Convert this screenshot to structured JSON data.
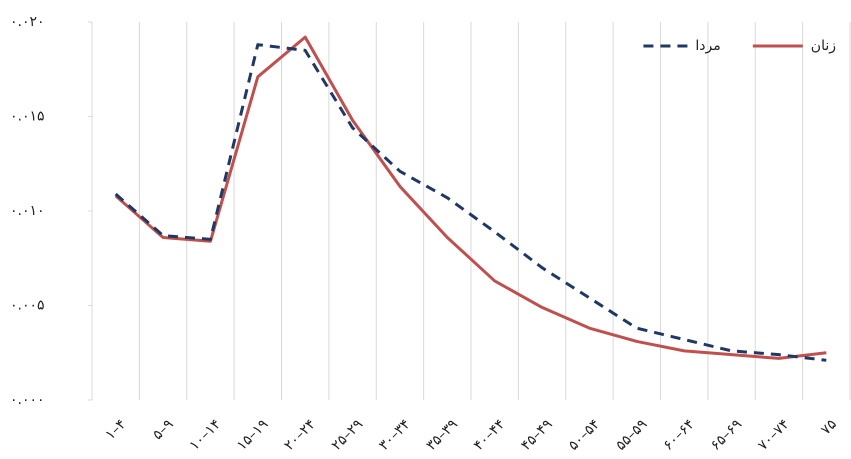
{
  "chart_data": {
    "type": "line",
    "categories": [
      "۱–۴",
      "۵–۹",
      "۱۰–۱۴",
      "۱۵–۱۹",
      "۲۰–۲۴",
      "۲۵–۲۹",
      "۳۰–۳۴",
      "۳۵–۳۹",
      "۴۰–۴۴",
      "۴۵–۴۹",
      "۵۰–۵۴",
      "۵۵–۵۹",
      "۶۰–۶۴",
      "۶۵–۶۹",
      "۷۰–۷۴",
      "۷۵"
    ],
    "series": [
      {
        "name": "زنان",
        "color": "#c0504d",
        "line_style": "solid",
        "values": [
          0.0108,
          0.0086,
          0.0084,
          0.0171,
          0.0192,
          0.0148,
          0.0113,
          0.0086,
          0.0063,
          0.0049,
          0.0038,
          0.0031,
          0.0026,
          0.0024,
          0.0022,
          0.0025
        ]
      },
      {
        "name": "مردا",
        "color": "#1f3864",
        "line_style": "dashed",
        "values": [
          0.0109,
          0.0087,
          0.0085,
          0.0188,
          0.0185,
          0.0144,
          0.0121,
          0.0107,
          0.0089,
          0.007,
          0.0054,
          0.0038,
          0.0032,
          0.0026,
          0.0024,
          0.0021
        ]
      }
    ],
    "ylim": [
      0,
      0.02
    ],
    "yticks": [
      {
        "value": 0,
        "label": "۰.۰۰۰"
      },
      {
        "value": 0.005,
        "label": "۰.۰۰۵"
      },
      {
        "value": 0.01,
        "label": "۰.۰۱۰"
      },
      {
        "value": 0.015,
        "label": "۰.۰۱۵"
      },
      {
        "value": 0.02,
        "label": "۰.۰۲۰"
      }
    ],
    "grid": true,
    "legend": "top-right"
  }
}
